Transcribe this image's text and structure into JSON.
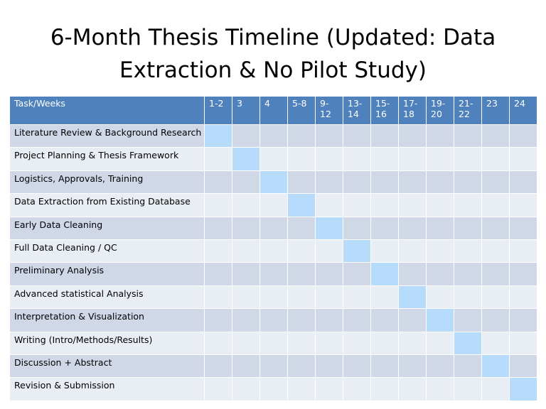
{
  "title": "6-Month Thesis Timeline (Updated: Data Extraction & No Pilot Study)",
  "table": {
    "header": [
      "Task/Weeks",
      "1-2",
      "3",
      "4",
      "5-8",
      "9-12",
      "13-14",
      "15-16",
      "17-18",
      "19-20",
      "21-22",
      "23",
      "24"
    ],
    "rows": [
      "Literature Review & Background Research",
      "Project Planning & Thesis Framework",
      "Logistics, Approvals, Training",
      "Data Extraction from Existing Database",
      "Early Data Cleaning",
      "Full Data Cleaning / QC",
      "Preliminary Analysis",
      "Advanced statistical Analysis",
      "Interpretation & Visualization",
      "Writing (Intro/Methods/Results)",
      "Discussion + Abstract",
      "Revision & Submission"
    ]
  }
}
